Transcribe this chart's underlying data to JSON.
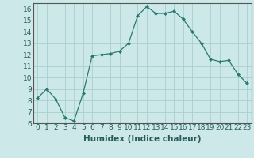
{
  "x": [
    0,
    1,
    2,
    3,
    4,
    5,
    6,
    7,
    8,
    9,
    10,
    11,
    12,
    13,
    14,
    15,
    16,
    17,
    18,
    19,
    20,
    21,
    22,
    23
  ],
  "y": [
    8.2,
    9.0,
    8.1,
    6.5,
    6.2,
    8.6,
    11.9,
    12.0,
    12.1,
    12.3,
    13.0,
    15.4,
    16.2,
    15.6,
    15.6,
    15.8,
    15.1,
    14.0,
    13.0,
    11.6,
    11.4,
    11.5,
    10.3,
    9.5
  ],
  "line_color": "#2a7a6e",
  "marker": "D",
  "marker_size": 2.0,
  "bg_color": "#cce8e8",
  "grid_color": "#aacece",
  "xlabel": "Humidex (Indice chaleur)",
  "ylim": [
    6,
    16.5
  ],
  "xlim": [
    -0.5,
    23.5
  ],
  "yticks": [
    6,
    7,
    8,
    9,
    10,
    11,
    12,
    13,
    14,
    15,
    16
  ],
  "xticks": [
    0,
    1,
    2,
    3,
    4,
    5,
    6,
    7,
    8,
    9,
    10,
    11,
    12,
    13,
    14,
    15,
    16,
    17,
    18,
    19,
    20,
    21,
    22,
    23
  ],
  "xlabel_fontsize": 7.5,
  "tick_fontsize": 6.5
}
